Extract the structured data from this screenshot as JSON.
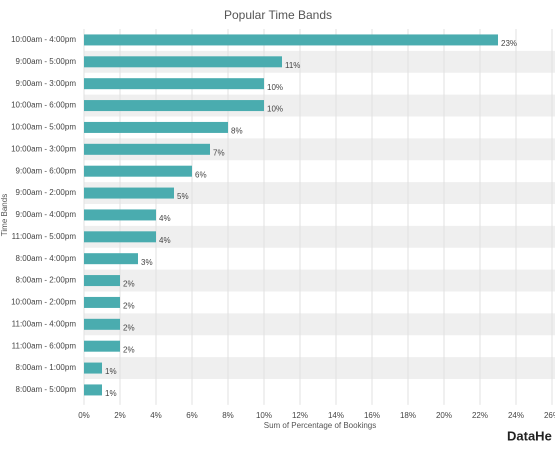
{
  "chart_data": {
    "type": "bar",
    "orientation": "horizontal",
    "title": "Popular Time Bands",
    "x_label": "Sum of Percentage of Bookings",
    "y_label": "Time Bands",
    "logo": "DataHe",
    "color": "#4aacaf",
    "grid": true,
    "categories": [
      "10:00am - 4:00pm",
      "9:00am - 5:00pm",
      "9:00am - 3:00pm",
      "10:00am - 6:00pm",
      "10:00am - 5:00pm",
      "10:00am - 3:00pm",
      "9:00am - 6:00pm",
      "9:00am - 2:00pm",
      "9:00am - 4:00pm",
      "11:00am - 5:00pm",
      "8:00am - 4:00pm",
      "8:00am - 2:00pm",
      "10:00am - 2:00pm",
      "11:00am - 4:00pm",
      "11:00am - 6:00pm",
      "8:00am - 1:00pm",
      "8:00am - 5:00pm"
    ],
    "values": [
      23,
      11,
      10,
      10,
      8,
      7,
      6,
      5,
      4,
      4,
      3,
      2,
      2,
      2,
      2,
      1,
      1
    ],
    "value_labels": [
      "23%",
      "11%",
      "10%",
      "10%",
      "8%",
      "7%",
      "6%",
      "5%",
      "4%",
      "4%",
      "3%",
      "2%",
      "2%",
      "2%",
      "2%",
      "1%",
      "1%"
    ],
    "xlim": [
      0,
      26
    ],
    "xticks": [
      {
        "value": 0,
        "label": "0%"
      },
      {
        "value": 2,
        "label": "2%"
      },
      {
        "value": 4,
        "label": "4%"
      },
      {
        "value": 6,
        "label": "6%"
      },
      {
        "value": 8,
        "label": "8%"
      },
      {
        "value": 10,
        "label": "10%"
      },
      {
        "value": 12,
        "label": "12%"
      },
      {
        "value": 14,
        "label": "14%"
      },
      {
        "value": 16,
        "label": "16%"
      },
      {
        "value": 18,
        "label": "18%"
      },
      {
        "value": 20,
        "label": "20%"
      },
      {
        "value": 22,
        "label": "22%"
      },
      {
        "value": 24,
        "label": "24%"
      },
      {
        "value": 26,
        "label": "26%"
      }
    ]
  }
}
